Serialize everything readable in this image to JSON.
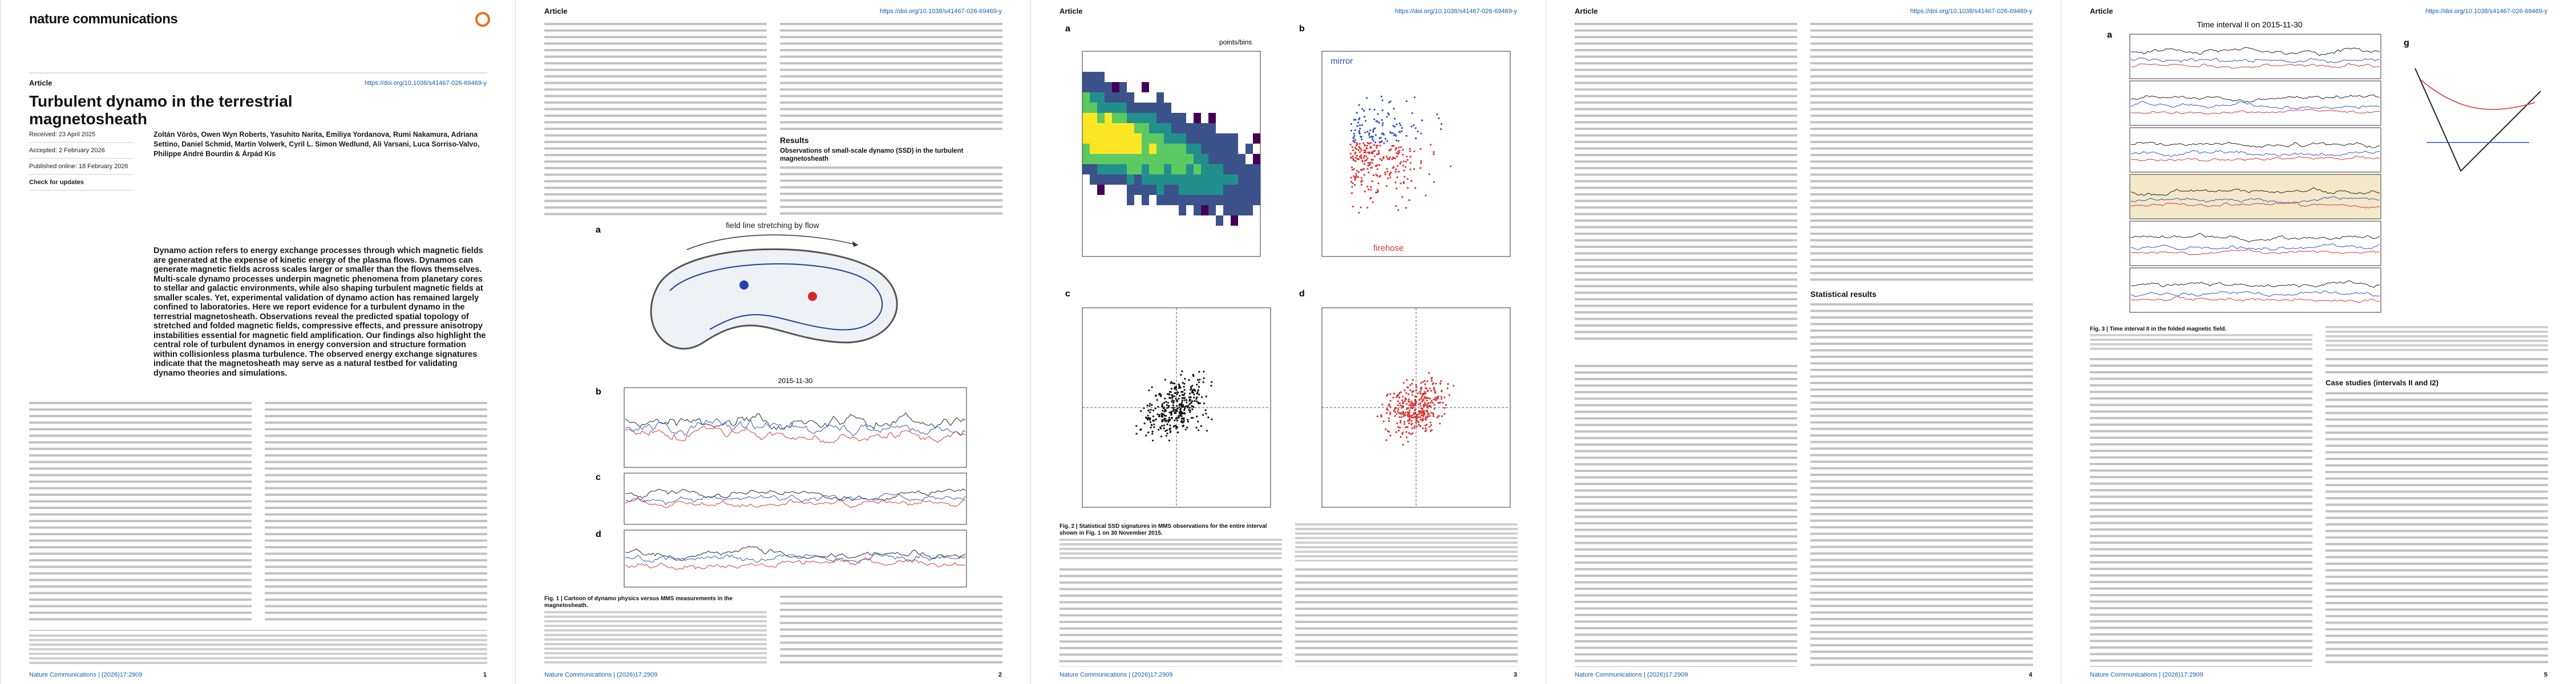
{
  "running_header": "Article",
  "doi": "https://doi.org/10.1038/s41467-026-69469-y",
  "footer": "Nature Communications | (2026)17:2909",
  "page_numbers": [
    "1",
    "2",
    "3",
    "4",
    "5"
  ],
  "page1": {
    "journal": "nature communications",
    "title": "Turbulent dynamo in the terrestrial magnetosheath",
    "received": "Received: 23 April 2025",
    "accepted": "Accepted: 2 February 2026",
    "published": "Published online: 18 February 2026",
    "check_updates": "Check for updates",
    "authors": "Zoltán Vörös, Owen Wyn Roberts, Yasuhito Narita, Emiliya Yordanova, Rumi Nakamura, Adriana Settino, Daniel Schmid, Martin Volwerk, Cyril L. Simon Wedlund, Ali Varsani, Luca Sorriso-Valvo, Philippe André Bourdin & Árpád Kis",
    "abstract": "Dynamo action refers to energy exchange processes through which magnetic fields are generated at the expense of kinetic energy of the plasma flows. Dynamos can generate magnetic fields across scales larger or smaller than the flows themselves. Multi-scale dynamo processes underpin magnetic phenomena from planetary cores to stellar and galactic environments, while also shaping turbulent magnetic fields at smaller scales. Yet, experimental validation of dynamo action has remained largely confined to laboratories. Here we report evidence for a turbulent dynamo in the terrestrial magnetosheath. Observations reveal the predicted spatial topology of stretched and folded magnetic fields, compressive effects, and pressure anisotropy instabilities essential for magnetic field amplification. Our findings also highlight the central role of turbulent dynamos in energy conversion and structure formation within collisionless plasma turbulence. The observed energy exchange signatures indicate that the magnetosheath may serve as a natural testbed for validating dynamo theories and simulations."
  },
  "page2": {
    "results_heading": "Results",
    "subheading": "Observations of small-scale dynamo (SSD) in the turbulent magnetosheath",
    "figure": {
      "panels": [
        "a",
        "b",
        "c",
        "d"
      ],
      "stretching_label": "field line stretching by flow",
      "date": "2015-11-30",
      "caption_title": "Fig. 1 | Cartoon of dynamo physics versus MMS measurements in the magnetosheath."
    }
  },
  "page3": {
    "figure": {
      "panels": [
        "a",
        "b",
        "c",
        "d"
      ],
      "colorbar_label": "points/bins",
      "mirror_label": "mirror",
      "firehose_label": "firehose",
      "caption_title": "Fig. 2 | Statistical SSD signatures in MMS observations for the entire interval shown in Fig. 1 on 30 November 2015."
    }
  },
  "page4": {
    "heading": "Statistical results"
  },
  "page5": {
    "figure": {
      "title": "Time interval II on 2015-11-30",
      "panels": [
        "a",
        "g"
      ],
      "caption_title": "Fig. 3 | Time interval II in the folded magnetic field."
    },
    "heading": "Case studies (intervals II and I2)"
  }
}
